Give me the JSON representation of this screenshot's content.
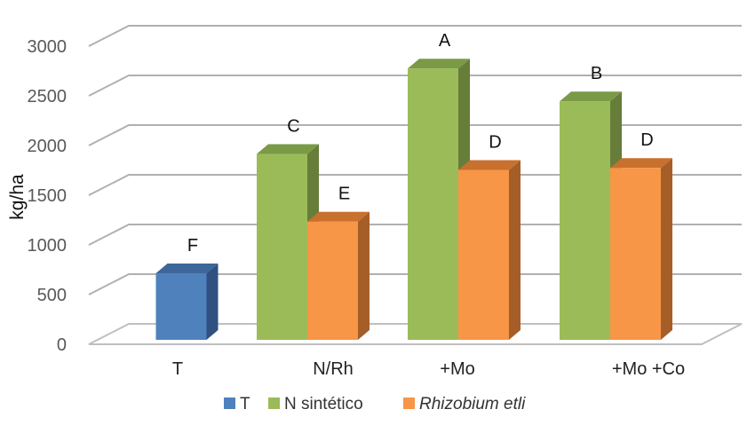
{
  "chart_data": {
    "type": "bar",
    "title": "",
    "xlabel": "",
    "ylabel": "kg/ha",
    "ylim": [
      0,
      3000
    ],
    "yticks": [
      0,
      500,
      1000,
      1500,
      2000,
      2500,
      3000
    ],
    "grid": true,
    "legend_position": "bottom",
    "categories": [
      "T",
      "N/Rh",
      "+Mo",
      "+Mo +Co"
    ],
    "series": [
      {
        "name": "T",
        "color": "#4f81bd",
        "values": [
          670,
          null,
          null,
          null
        ],
        "labels": [
          "F",
          null,
          null,
          null
        ]
      },
      {
        "name": "N sintético",
        "color": "#9bbb59",
        "values": [
          null,
          1870,
          2730,
          2400
        ],
        "labels": [
          null,
          "C",
          "A",
          "B"
        ]
      },
      {
        "name": "Rhizobium etli",
        "color": "#f79646",
        "values": [
          null,
          1190,
          1710,
          1730
        ],
        "labels": [
          null,
          "E",
          "D",
          "D"
        ]
      }
    ]
  }
}
